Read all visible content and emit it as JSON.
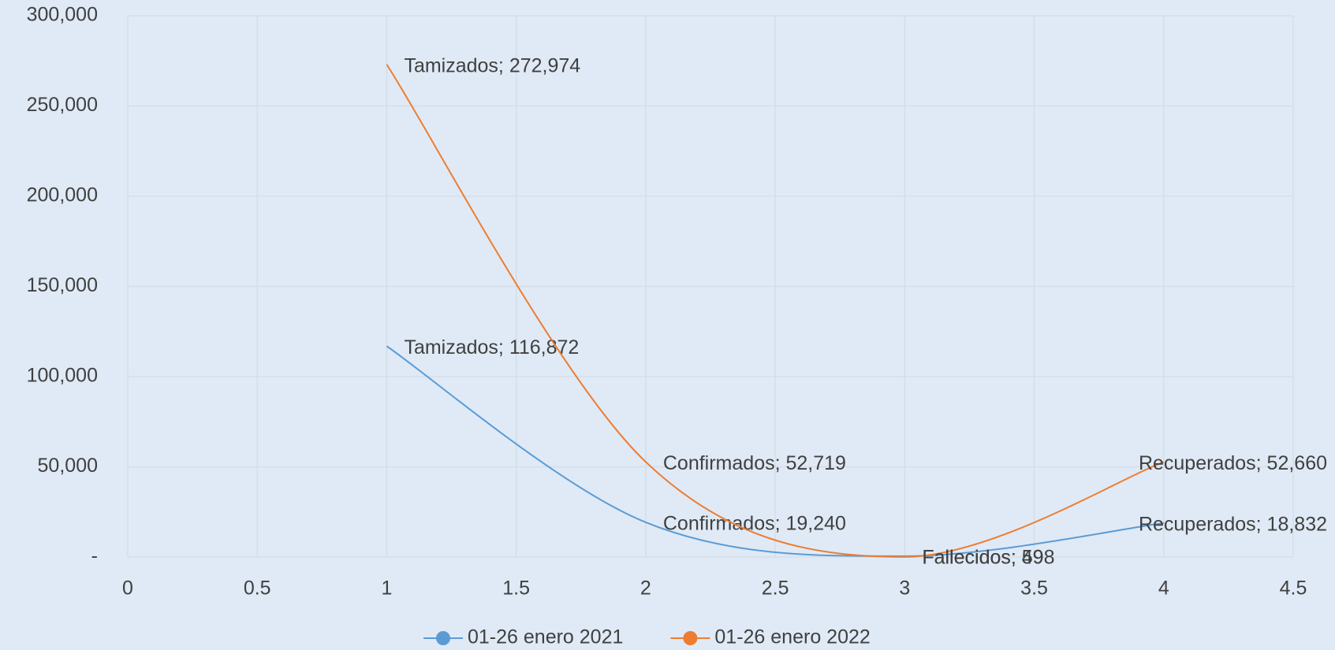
{
  "chart_data": {
    "type": "scatter",
    "x": [
      1,
      2,
      3,
      4
    ],
    "series": [
      {
        "name": "01-26 enero 2021",
        "color": "#5b9bd5",
        "values": [
          116872,
          19240,
          498,
          18832
        ],
        "value_labels": [
          "Tamizados;  116,872",
          "Confirmados;  19,240",
          "Fallecidos;  498",
          "Recuperados;  18,832"
        ]
      },
      {
        "name": "01-26 enero 2022",
        "color": "#ed7d31",
        "values": [
          272974,
          52719,
          59,
          52660
        ],
        "value_labels": [
          "Tamizados;  272,974",
          "Confirmados;  52,719",
          "Fallecidos;  59",
          "Recuperados;  52,660"
        ]
      }
    ],
    "xlim": [
      0,
      4.5
    ],
    "xticks": [
      0,
      0.5,
      1,
      1.5,
      2,
      2.5,
      3,
      3.5,
      4,
      4.5
    ],
    "ylim": [
      0,
      300000
    ],
    "yticks": [
      {
        "value": 0,
        "label": "-"
      },
      {
        "value": 50000,
        "label": "50,000"
      },
      {
        "value": 100000,
        "label": "100,000"
      },
      {
        "value": 150000,
        "label": "150,000"
      },
      {
        "value": 200000,
        "label": "200,000"
      },
      {
        "value": 250000,
        "label": "250,000"
      },
      {
        "value": 300000,
        "label": "300,000"
      }
    ],
    "grid": true,
    "legend": "bottom",
    "smooth": true
  }
}
